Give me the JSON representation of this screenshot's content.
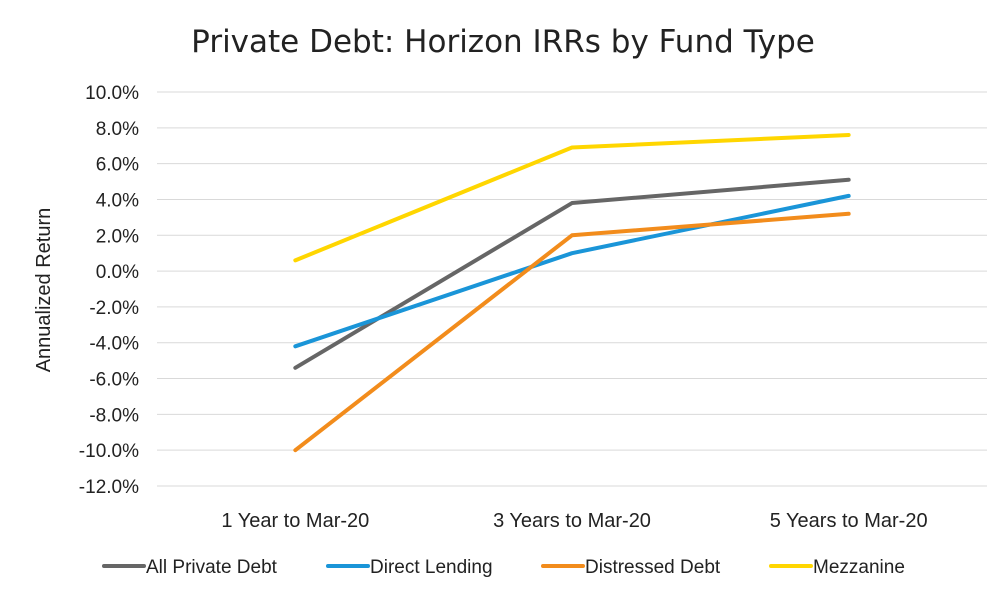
{
  "chart_data": {
    "type": "line",
    "title": "Private Debt: Horizon IRRs by Fund Type",
    "xlabel": "",
    "ylabel": "Annualized Return",
    "categories": [
      "1 Year to Mar-20",
      "3 Years to Mar-20",
      "5 Years to Mar-20"
    ],
    "ylim": [
      -12.0,
      10.0
    ],
    "y_step": 2.0,
    "y_tick_labels": [
      "10.0%",
      "8.0%",
      "6.0%",
      "4.0%",
      "2.0%",
      "0.0%",
      "-2.0%",
      "-4.0%",
      "-6.0%",
      "-8.0%",
      "-10.0%",
      "-12.0%"
    ],
    "grid": true,
    "legend_position": "bottom",
    "series": [
      {
        "name": "All Private Debt",
        "color": "#666666",
        "values": [
          -5.4,
          3.8,
          5.1
        ]
      },
      {
        "name": "Direct Lending",
        "color": "#1a95d8",
        "values": [
          -4.2,
          1.0,
          4.2
        ]
      },
      {
        "name": "Distressed Debt",
        "color": "#f28c1c",
        "values": [
          -10.0,
          2.0,
          3.2
        ]
      },
      {
        "name": "Mezzanine",
        "color": "#ffd600",
        "values": [
          0.6,
          6.9,
          7.6
        ]
      }
    ]
  }
}
